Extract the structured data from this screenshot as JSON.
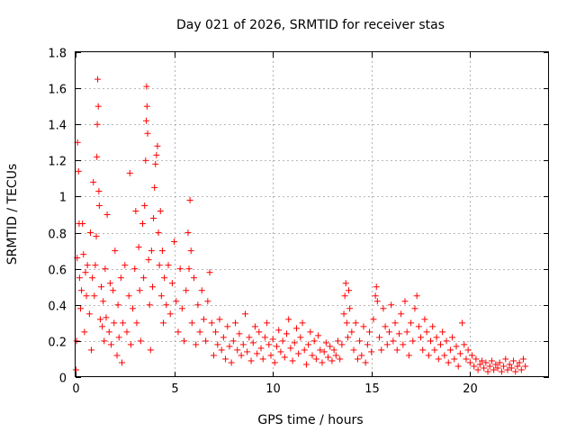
{
  "chart_data": {
    "type": "scatter",
    "title": "Day 021 of 2026, SRMTID for receiver stas",
    "xlabel": "GPS time / hours",
    "ylabel": "SRMTID / TECUs",
    "xlim": [
      0,
      24
    ],
    "ylim": [
      0,
      1.8
    ],
    "xticks": [
      "0",
      "5",
      "10",
      "15",
      "20"
    ],
    "yticks": [
      "0",
      "0.2",
      "0.4",
      "0.6",
      "0.8",
      "1",
      "1.2",
      "1.4",
      "1.6",
      "1.8"
    ],
    "grid": true,
    "marker": "+",
    "color": "#ff0000",
    "series": [
      {
        "name": "SRMTID",
        "points": [
          [
            0.02,
            0.04
          ],
          [
            0.05,
            0.2
          ],
          [
            0.08,
            0.66
          ],
          [
            0.1,
            1.3
          ],
          [
            0.15,
            1.14
          ],
          [
            0.18,
            0.85
          ],
          [
            0.2,
            0.55
          ],
          [
            0.25,
            0.38
          ],
          [
            0.3,
            0.48
          ],
          [
            0.35,
            0.85
          ],
          [
            0.4,
            0.68
          ],
          [
            0.45,
            0.25
          ],
          [
            0.5,
            0.58
          ],
          [
            0.55,
            0.45
          ],
          [
            0.6,
            0.62
          ],
          [
            0.7,
            0.35
          ],
          [
            0.75,
            0.8
          ],
          [
            0.8,
            0.15
          ],
          [
            0.85,
            0.55
          ],
          [
            0.9,
            1.08
          ],
          [
            0.95,
            0.45
          ],
          [
            1.0,
            0.62
          ],
          [
            1.05,
            0.78
          ],
          [
            1.08,
            1.22
          ],
          [
            1.1,
            1.4
          ],
          [
            1.12,
            1.65
          ],
          [
            1.15,
            1.5
          ],
          [
            1.18,
            1.03
          ],
          [
            1.2,
            0.95
          ],
          [
            1.25,
            0.32
          ],
          [
            1.3,
            0.5
          ],
          [
            1.35,
            0.28
          ],
          [
            1.4,
            0.42
          ],
          [
            1.45,
            0.2
          ],
          [
            1.5,
            0.6
          ],
          [
            1.55,
            0.33
          ],
          [
            1.6,
            0.9
          ],
          [
            1.7,
            0.25
          ],
          [
            1.75,
            0.52
          ],
          [
            1.8,
            0.18
          ],
          [
            1.9,
            0.48
          ],
          [
            1.95,
            0.3
          ],
          [
            2.0,
            0.7
          ],
          [
            2.1,
            0.12
          ],
          [
            2.15,
            0.4
          ],
          [
            2.2,
            0.22
          ],
          [
            2.3,
            0.55
          ],
          [
            2.35,
            0.08
          ],
          [
            2.4,
            0.3
          ],
          [
            2.5,
            0.62
          ],
          [
            2.6,
            0.25
          ],
          [
            2.7,
            0.45
          ],
          [
            2.75,
            1.13
          ],
          [
            2.8,
            0.18
          ],
          [
            2.9,
            0.38
          ],
          [
            3.0,
            0.6
          ],
          [
            3.05,
            0.92
          ],
          [
            3.1,
            0.3
          ],
          [
            3.2,
            0.72
          ],
          [
            3.25,
            0.48
          ],
          [
            3.3,
            0.2
          ],
          [
            3.4,
            0.85
          ],
          [
            3.45,
            0.55
          ],
          [
            3.5,
            0.95
          ],
          [
            3.55,
            1.2
          ],
          [
            3.58,
            1.42
          ],
          [
            3.6,
            1.61
          ],
          [
            3.62,
            1.5
          ],
          [
            3.65,
            1.35
          ],
          [
            3.7,
            0.65
          ],
          [
            3.75,
            0.4
          ],
          [
            3.8,
            0.15
          ],
          [
            3.85,
            0.7
          ],
          [
            3.9,
            0.5
          ],
          [
            3.95,
            0.88
          ],
          [
            4.0,
            1.05
          ],
          [
            4.05,
            1.18
          ],
          [
            4.1,
            1.23
          ],
          [
            4.15,
            1.28
          ],
          [
            4.2,
            0.8
          ],
          [
            4.25,
            0.62
          ],
          [
            4.3,
            0.92
          ],
          [
            4.35,
            0.45
          ],
          [
            4.4,
            0.7
          ],
          [
            4.45,
            0.3
          ],
          [
            4.5,
            0.55
          ],
          [
            4.6,
            0.4
          ],
          [
            4.7,
            0.62
          ],
          [
            4.8,
            0.35
          ],
          [
            4.9,
            0.52
          ],
          [
            5.0,
            0.75
          ],
          [
            5.1,
            0.42
          ],
          [
            5.2,
            0.25
          ],
          [
            5.3,
            0.6
          ],
          [
            5.4,
            0.38
          ],
          [
            5.5,
            0.2
          ],
          [
            5.6,
            0.48
          ],
          [
            5.7,
            0.8
          ],
          [
            5.75,
            0.6
          ],
          [
            5.8,
            0.98
          ],
          [
            5.85,
            0.7
          ],
          [
            5.9,
            0.3
          ],
          [
            6.0,
            0.55
          ],
          [
            6.1,
            0.18
          ],
          [
            6.2,
            0.4
          ],
          [
            6.3,
            0.25
          ],
          [
            6.4,
            0.48
          ],
          [
            6.5,
            0.32
          ],
          [
            6.6,
            0.2
          ],
          [
            6.7,
            0.42
          ],
          [
            6.8,
            0.58
          ],
          [
            6.9,
            0.3
          ],
          [
            7.0,
            0.12
          ],
          [
            7.1,
            0.25
          ],
          [
            7.2,
            0.18
          ],
          [
            7.3,
            0.32
          ],
          [
            7.4,
            0.15
          ],
          [
            7.5,
            0.22
          ],
          [
            7.6,
            0.1
          ],
          [
            7.7,
            0.28
          ],
          [
            7.8,
            0.17
          ],
          [
            7.9,
            0.08
          ],
          [
            8.0,
            0.2
          ],
          [
            8.1,
            0.3
          ],
          [
            8.2,
            0.15
          ],
          [
            8.3,
            0.24
          ],
          [
            8.4,
            0.12
          ],
          [
            8.5,
            0.18
          ],
          [
            8.6,
            0.35
          ],
          [
            8.7,
            0.14
          ],
          [
            8.8,
            0.22
          ],
          [
            8.9,
            0.09
          ],
          [
            9.0,
            0.19
          ],
          [
            9.1,
            0.28
          ],
          [
            9.2,
            0.13
          ],
          [
            9.3,
            0.25
          ],
          [
            9.4,
            0.16
          ],
          [
            9.5,
            0.1
          ],
          [
            9.6,
            0.22
          ],
          [
            9.7,
            0.3
          ],
          [
            9.8,
            0.18
          ],
          [
            9.9,
            0.12
          ],
          [
            10.0,
            0.21
          ],
          [
            10.1,
            0.08
          ],
          [
            10.2,
            0.17
          ],
          [
            10.3,
            0.26
          ],
          [
            10.4,
            0.14
          ],
          [
            10.5,
            0.2
          ],
          [
            10.6,
            0.11
          ],
          [
            10.7,
            0.24
          ],
          [
            10.8,
            0.32
          ],
          [
            10.9,
            0.16
          ],
          [
            11.0,
            0.09
          ],
          [
            11.1,
            0.19
          ],
          [
            11.2,
            0.27
          ],
          [
            11.3,
            0.13
          ],
          [
            11.4,
            0.22
          ],
          [
            11.5,
            0.3
          ],
          [
            11.6,
            0.15
          ],
          [
            11.7,
            0.07
          ],
          [
            11.8,
            0.18
          ],
          [
            11.9,
            0.25
          ],
          [
            12.0,
            0.12
          ],
          [
            12.1,
            0.2
          ],
          [
            12.2,
            0.1
          ],
          [
            12.3,
            0.23
          ],
          [
            12.4,
            0.15
          ],
          [
            12.5,
            0.08
          ],
          [
            12.6,
            0.14
          ],
          [
            12.7,
            0.19
          ],
          [
            12.8,
            0.11
          ],
          [
            12.9,
            0.17
          ],
          [
            13.0,
            0.09
          ],
          [
            13.1,
            0.15
          ],
          [
            13.2,
            0.12
          ],
          [
            13.3,
            0.2
          ],
          [
            13.4,
            0.1
          ],
          [
            13.5,
            0.18
          ],
          [
            13.6,
            0.35
          ],
          [
            13.65,
            0.45
          ],
          [
            13.7,
            0.52
          ],
          [
            13.75,
            0.3
          ],
          [
            13.8,
            0.22
          ],
          [
            13.85,
            0.48
          ],
          [
            13.9,
            0.38
          ],
          [
            14.0,
            0.25
          ],
          [
            14.1,
            0.15
          ],
          [
            14.2,
            0.3
          ],
          [
            14.3,
            0.1
          ],
          [
            14.4,
            0.2
          ],
          [
            14.5,
            0.12
          ],
          [
            14.6,
            0.28
          ],
          [
            14.7,
            0.08
          ],
          [
            14.8,
            0.18
          ],
          [
            14.9,
            0.25
          ],
          [
            15.0,
            0.14
          ],
          [
            15.1,
            0.32
          ],
          [
            15.2,
            0.45
          ],
          [
            15.25,
            0.5
          ],
          [
            15.3,
            0.42
          ],
          [
            15.4,
            0.22
          ],
          [
            15.5,
            0.15
          ],
          [
            15.6,
            0.38
          ],
          [
            15.7,
            0.28
          ],
          [
            15.8,
            0.18
          ],
          [
            15.9,
            0.25
          ],
          [
            16.0,
            0.4
          ],
          [
            16.1,
            0.2
          ],
          [
            16.2,
            0.3
          ],
          [
            16.3,
            0.15
          ],
          [
            16.4,
            0.24
          ],
          [
            16.5,
            0.35
          ],
          [
            16.6,
            0.18
          ],
          [
            16.7,
            0.42
          ],
          [
            16.8,
            0.25
          ],
          [
            16.9,
            0.12
          ],
          [
            17.0,
            0.3
          ],
          [
            17.1,
            0.2
          ],
          [
            17.2,
            0.38
          ],
          [
            17.3,
            0.45
          ],
          [
            17.4,
            0.28
          ],
          [
            17.5,
            0.22
          ],
          [
            17.6,
            0.15
          ],
          [
            17.7,
            0.32
          ],
          [
            17.8,
            0.25
          ],
          [
            17.9,
            0.12
          ],
          [
            18.0,
            0.2
          ],
          [
            18.1,
            0.28
          ],
          [
            18.2,
            0.15
          ],
          [
            18.3,
            0.22
          ],
          [
            18.4,
            0.1
          ],
          [
            18.5,
            0.18
          ],
          [
            18.6,
            0.25
          ],
          [
            18.7,
            0.12
          ],
          [
            18.8,
            0.2
          ],
          [
            18.9,
            0.08
          ],
          [
            19.0,
            0.15
          ],
          [
            19.1,
            0.22
          ],
          [
            19.2,
            0.1
          ],
          [
            19.3,
            0.17
          ],
          [
            19.4,
            0.06
          ],
          [
            19.5,
            0.13
          ],
          [
            19.6,
            0.3
          ],
          [
            19.7,
            0.18
          ],
          [
            19.8,
            0.1
          ],
          [
            19.9,
            0.15
          ],
          [
            20.0,
            0.08
          ],
          [
            20.1,
            0.12
          ],
          [
            20.2,
            0.06
          ],
          [
            20.3,
            0.1
          ],
          [
            20.4,
            0.04
          ],
          [
            20.5,
            0.07
          ],
          [
            20.6,
            0.09
          ],
          [
            20.7,
            0.05
          ],
          [
            20.8,
            0.08
          ],
          [
            20.9,
            0.03
          ],
          [
            21.0,
            0.06
          ],
          [
            21.1,
            0.09
          ],
          [
            21.2,
            0.04
          ],
          [
            21.3,
            0.07
          ],
          [
            21.4,
            0.05
          ],
          [
            21.5,
            0.08
          ],
          [
            21.6,
            0.03
          ],
          [
            21.7,
            0.06
          ],
          [
            21.8,
            0.1
          ],
          [
            21.9,
            0.04
          ],
          [
            22.0,
            0.07
          ],
          [
            22.1,
            0.05
          ],
          [
            22.2,
            0.09
          ],
          [
            22.3,
            0.03
          ],
          [
            22.4,
            0.06
          ],
          [
            22.5,
            0.08
          ],
          [
            22.6,
            0.04
          ],
          [
            22.7,
            0.1
          ],
          [
            22.8,
            0.06
          ]
        ]
      }
    ]
  }
}
